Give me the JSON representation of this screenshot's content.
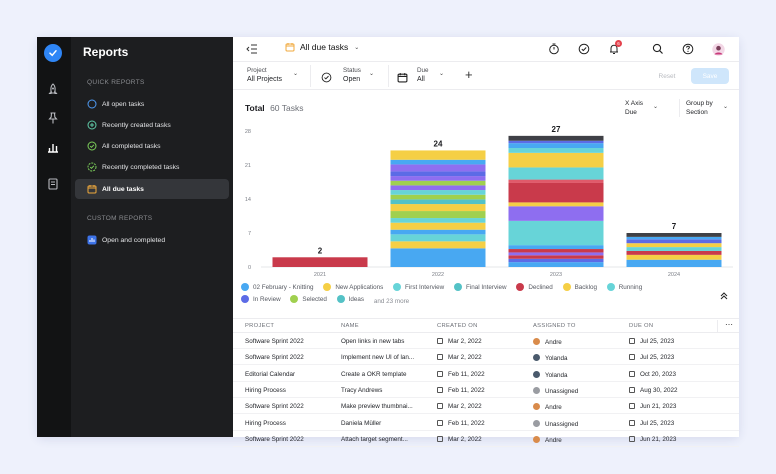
{
  "sidebar": {
    "title": "Reports",
    "quick_reports_heading": "QUICK REPORTS",
    "custom_reports_heading": "CUSTOM REPORTS",
    "quick_reports": [
      {
        "label": "All open tasks",
        "icon": "open-circle-icon"
      },
      {
        "label": "Recently created tasks",
        "icon": "plus-circle-icon"
      },
      {
        "label": "All completed tasks",
        "icon": "check-circle-icon"
      },
      {
        "label": "Recently completed tasks",
        "icon": "check-circle-dashed-icon"
      },
      {
        "label": "All due tasks",
        "icon": "calendar-icon",
        "active": true
      }
    ],
    "custom_reports": [
      {
        "label": "Open and completed",
        "icon": "report-icon"
      }
    ]
  },
  "topbar": {
    "title": "All due tasks",
    "notification_count": "6"
  },
  "filters": {
    "project_label": "Project",
    "project_value": "All Projects",
    "status_label": "Status",
    "status_value": "Open",
    "due_label": "Due",
    "due_value": "All",
    "add_symbol": "+",
    "reset_label": "Reset",
    "save_label": "Save"
  },
  "summary": {
    "total_label": "Total",
    "total_value": "60 Tasks",
    "xaxis_label": "X Axis",
    "xaxis_value": "Due",
    "groupby_label": "Group by",
    "groupby_value": "Section"
  },
  "chart_data": {
    "type": "bar",
    "stacked": true,
    "categories": [
      "2021",
      "2022",
      "2023",
      "2024"
    ],
    "totals": [
      2,
      24,
      27,
      7
    ],
    "value_labels": [
      "2",
      "24",
      "27",
      "7"
    ],
    "y_ticks": [
      "0",
      "7",
      "14",
      "21",
      "28"
    ],
    "ylim": [
      0,
      28
    ],
    "grid": false,
    "legend_position": "bottom",
    "segment_colors": [
      "#c93a4b",
      "#48a8f2",
      "#f5cf45",
      "#67d4d8",
      "#8e6ef0",
      "#a0d04f",
      "#5c6be6",
      "#e05a6a",
      "#54c2c6"
    ],
    "bars": [
      {
        "category": "2021",
        "segments": [
          {
            "color": "#c93a4b",
            "value": 2
          }
        ]
      },
      {
        "category": "2022",
        "segments": [
          {
            "color": "#48a8f2",
            "value": 4
          },
          {
            "color": "#f5cf45",
            "value": 1.5
          },
          {
            "color": "#67d4d8",
            "value": 1.5
          },
          {
            "color": "#48a8f2",
            "value": 1
          },
          {
            "color": "#f5cf45",
            "value": 1.5
          },
          {
            "color": "#67d4d8",
            "value": 1
          },
          {
            "color": "#a0d04f",
            "value": 1.5
          },
          {
            "color": "#f5cf45",
            "value": 1.5
          },
          {
            "color": "#54c2c6",
            "value": 1
          },
          {
            "color": "#a0d04f",
            "value": 1
          },
          {
            "color": "#67d4d8",
            "value": 1
          },
          {
            "color": "#8e6ef0",
            "value": 1
          },
          {
            "color": "#a0d04f",
            "value": 1
          },
          {
            "color": "#8e6ef0",
            "value": 1
          },
          {
            "color": "#5c6be6",
            "value": 1
          },
          {
            "color": "#8e6ef0",
            "value": 1.5
          },
          {
            "color": "#48a8f2",
            "value": 1
          },
          {
            "color": "#f5cf45",
            "value": 2
          }
        ]
      },
      {
        "category": "2023",
        "segments": [
          {
            "color": "#48a8f2",
            "value": 1
          },
          {
            "color": "#5c6be6",
            "value": 0.7
          },
          {
            "color": "#c93a4b",
            "value": 0.7
          },
          {
            "color": "#8e6ef0",
            "value": 0.6
          },
          {
            "color": "#c93a4b",
            "value": 0.7
          },
          {
            "color": "#48a8f2",
            "value": 0.8
          },
          {
            "color": "#67d4d8",
            "value": 5
          },
          {
            "color": "#8e6ef0",
            "value": 3
          },
          {
            "color": "#f5cf45",
            "value": 0.8
          },
          {
            "color": "#c93a4b",
            "value": 4
          },
          {
            "color": "#e05a6a",
            "value": 0.7
          },
          {
            "color": "#67d4d8",
            "value": 2.5
          },
          {
            "color": "#f5cf45",
            "value": 3
          },
          {
            "color": "#67d4d8",
            "value": 1
          },
          {
            "color": "#48a8f2",
            "value": 1
          },
          {
            "color": "#5c6be6",
            "value": 0.5
          },
          {
            "color": "#3f4046",
            "value": 1
          }
        ]
      },
      {
        "category": "2024",
        "segments": [
          {
            "color": "#48a8f2",
            "value": 1.5
          },
          {
            "color": "#f5cf45",
            "value": 1
          },
          {
            "color": "#c93a4b",
            "value": 0.8
          },
          {
            "color": "#67d4d8",
            "value": 0.8
          },
          {
            "color": "#f5cf45",
            "value": 0.8
          },
          {
            "color": "#5c6be6",
            "value": 0.8
          },
          {
            "color": "#48a8f2",
            "value": 0.5
          },
          {
            "color": "#3f4046",
            "value": 0.8
          }
        ]
      }
    ]
  },
  "legend": {
    "items": [
      {
        "label": "02 February - Knitting",
        "color": "#48a8f2"
      },
      {
        "label": "New Applications",
        "color": "#f5cf45"
      },
      {
        "label": "First Interview",
        "color": "#67d4d8"
      },
      {
        "label": "Final Interview",
        "color": "#54c2c6"
      },
      {
        "label": "Declined",
        "color": "#c93a4b"
      },
      {
        "label": "Backlog",
        "color": "#f5cf45"
      },
      {
        "label": "Running",
        "color": "#67d4d8"
      },
      {
        "label": "In Review",
        "color": "#5c6be6"
      },
      {
        "label": "Selected",
        "color": "#a0d04f"
      },
      {
        "label": "Ideas",
        "color": "#54c2c6"
      }
    ],
    "more_label": "and 23 more"
  },
  "table": {
    "headers": [
      "PROJECT",
      "NAME",
      "CREATED ON",
      "ASSIGNED TO",
      "DUE ON"
    ],
    "rows": [
      {
        "project": "Software Sprint 2022",
        "name": "Open links in new tabs",
        "created": "Mar 2, 2022",
        "assignee": "Andre",
        "avatar_color": "#d98b4b",
        "due": "Jul 25, 2023"
      },
      {
        "project": "Software Sprint 2022",
        "name": "Implement new UI of lan...",
        "created": "Mar 2, 2022",
        "assignee": "Yolanda",
        "avatar_color": "#4a5a6c",
        "due": "Jul 25, 2023"
      },
      {
        "project": "Editorial Calendar",
        "name": "Create a OKR template",
        "created": "Feb 11, 2022",
        "assignee": "Yolanda",
        "avatar_color": "#4a5a6c",
        "due": "Oct 20, 2023"
      },
      {
        "project": "Hiring Process",
        "name": "Tracy Andrews",
        "created": "Feb 11, 2022",
        "assignee": "Unassigned",
        "avatar_color": "#9a9ca2",
        "due": "Aug 30, 2022"
      },
      {
        "project": "Software Sprint 2022",
        "name": "Make preview thumbnai...",
        "created": "Mar 2, 2022",
        "assignee": "Andre",
        "avatar_color": "#d98b4b",
        "due": "Jun 21, 2023"
      },
      {
        "project": "Hiring Process",
        "name": "Daniela Müller",
        "created": "Feb 11, 2022",
        "assignee": "Unassigned",
        "avatar_color": "#9a9ca2",
        "due": "Jul 25, 2023"
      },
      {
        "project": "Software Sprint 2022",
        "name": "Attach target segment...",
        "created": "Mar 2, 2022",
        "assignee": "Andre",
        "avatar_color": "#d98b4b",
        "due": "Jun 21, 2023"
      }
    ]
  },
  "colors": {
    "accent": "#2f86f6",
    "save_button_bg": "#cfe6fb",
    "notification_badge": "#e4424d"
  }
}
